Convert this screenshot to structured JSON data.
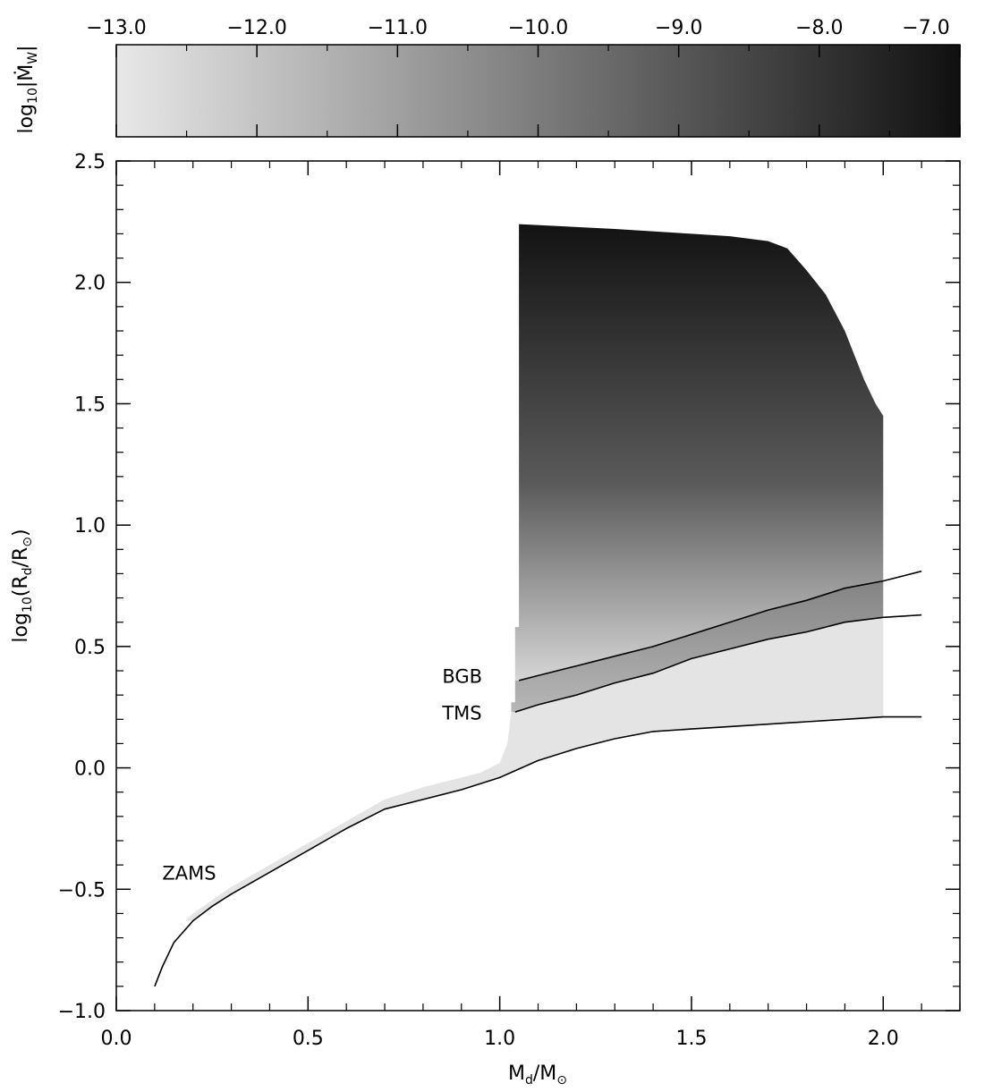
{
  "chart_data": [
    {
      "type": "heatmap",
      "role": "colorbar",
      "ticks": [
        -13.0,
        -12.0,
        -11.0,
        -10.0,
        -9.0,
        -8.0,
        -7.0
      ],
      "tick_labels": [
        "−13.0",
        "−12.0",
        "−11.0",
        "−10.0",
        "−9.0",
        "−8.0",
        "−7.0"
      ],
      "range": [
        -13.0,
        -7.0
      ],
      "colormap": {
        "low": "#e8e8e8",
        "high": "#101010"
      },
      "label": {
        "main": "log",
        "sub": "10",
        "rest": "|Ṁ",
        "sub2": "W",
        "end": "|"
      }
    },
    {
      "type": "heatmap",
      "role": "main",
      "xlim": [
        0.0,
        2.2
      ],
      "ylim": [
        -1.0,
        2.5
      ],
      "xticks": [
        0.0,
        0.5,
        1.0,
        1.5,
        2.0
      ],
      "xtick_labels": [
        "0.0",
        "0.5",
        "1.0",
        "1.5",
        "2.0"
      ],
      "yticks": [
        -1.0,
        -0.5,
        0.0,
        0.5,
        1.0,
        1.5,
        2.0,
        2.5
      ],
      "ytick_labels": [
        "−1.0",
        "−0.5",
        "0.0",
        "0.5",
        "1.0",
        "1.5",
        "2.0",
        "2.5"
      ],
      "xlabel": {
        "a": "M",
        "a_sub": "d",
        "b": "/M",
        "b_sub": "⊙"
      },
      "ylabel": {
        "a": "log",
        "a_sub": "10",
        "b": "(R",
        "b_sub": "d",
        "c": "/R",
        "c_sub": "⊙",
        "d": ")"
      },
      "curves": [
        {
          "name": "ZAMS",
          "points": [
            [
              0.1,
              -0.9
            ],
            [
              0.12,
              -0.82
            ],
            [
              0.15,
              -0.72
            ],
            [
              0.2,
              -0.63
            ],
            [
              0.25,
              -0.57
            ],
            [
              0.3,
              -0.52
            ],
            [
              0.4,
              -0.43
            ],
            [
              0.5,
              -0.34
            ],
            [
              0.6,
              -0.25
            ],
            [
              0.7,
              -0.17
            ],
            [
              0.8,
              -0.13
            ],
            [
              0.9,
              -0.09
            ],
            [
              1.0,
              -0.04
            ],
            [
              1.1,
              0.03
            ],
            [
              1.2,
              0.08
            ],
            [
              1.3,
              0.12
            ],
            [
              1.4,
              0.15
            ],
            [
              1.5,
              0.16
            ],
            [
              1.6,
              0.17
            ],
            [
              1.7,
              0.18
            ],
            [
              1.8,
              0.19
            ],
            [
              1.9,
              0.2
            ],
            [
              2.0,
              0.21
            ],
            [
              2.1,
              0.21
            ]
          ]
        },
        {
          "name": "TMS",
          "points": [
            [
              1.04,
              0.23
            ],
            [
              1.1,
              0.26
            ],
            [
              1.2,
              0.3
            ],
            [
              1.3,
              0.35
            ],
            [
              1.4,
              0.39
            ],
            [
              1.5,
              0.45
            ],
            [
              1.6,
              0.49
            ],
            [
              1.7,
              0.53
            ],
            [
              1.8,
              0.56
            ],
            [
              1.9,
              0.6
            ],
            [
              2.0,
              0.62
            ],
            [
              2.1,
              0.63
            ]
          ]
        },
        {
          "name": "BGB",
          "points": [
            [
              1.05,
              0.36
            ],
            [
              1.1,
              0.38
            ],
            [
              1.2,
              0.42
            ],
            [
              1.3,
              0.46
            ],
            [
              1.4,
              0.5
            ],
            [
              1.5,
              0.55
            ],
            [
              1.6,
              0.6
            ],
            [
              1.7,
              0.65
            ],
            [
              1.8,
              0.69
            ],
            [
              1.9,
              0.74
            ],
            [
              2.0,
              0.77
            ],
            [
              2.1,
              0.81
            ]
          ]
        }
      ],
      "labels": [
        {
          "text": "BGB",
          "x": 0.85,
          "y": 0.35
        },
        {
          "text": "TMS",
          "x": 0.85,
          "y": 0.2
        },
        {
          "text": "ZAMS",
          "x": 0.12,
          "y": -0.46
        }
      ],
      "dark_region": {
        "boundary": [
          [
            1.04,
            0.58
          ],
          [
            1.05,
            0.58
          ],
          [
            1.05,
            2.24
          ],
          [
            1.3,
            2.22
          ],
          [
            1.5,
            2.2
          ],
          [
            1.6,
            2.19
          ],
          [
            1.7,
            2.17
          ],
          [
            1.75,
            2.14
          ],
          [
            1.8,
            2.05
          ],
          [
            1.85,
            1.95
          ],
          [
            1.9,
            1.8
          ],
          [
            1.95,
            1.6
          ],
          [
            1.98,
            1.5
          ],
          [
            2.0,
            1.45
          ],
          [
            2.0,
            0.77
          ],
          [
            1.9,
            0.74
          ],
          [
            1.8,
            0.69
          ],
          [
            1.7,
            0.65
          ],
          [
            1.6,
            0.6
          ],
          [
            1.5,
            0.55
          ],
          [
            1.4,
            0.5
          ],
          [
            1.3,
            0.46
          ],
          [
            1.2,
            0.42
          ],
          [
            1.1,
            0.38
          ],
          [
            1.05,
            0.36
          ],
          [
            1.04,
            0.36
          ]
        ],
        "color_top": "#121212",
        "color_bottom": "#e0e0e0"
      },
      "mid_band": {
        "boundary": [
          [
            1.04,
            0.36
          ],
          [
            1.05,
            0.36
          ],
          [
            1.1,
            0.38
          ],
          [
            1.2,
            0.42
          ],
          [
            1.3,
            0.46
          ],
          [
            1.4,
            0.5
          ],
          [
            1.5,
            0.55
          ],
          [
            1.6,
            0.6
          ],
          [
            1.7,
            0.65
          ],
          [
            1.8,
            0.69
          ],
          [
            1.9,
            0.74
          ],
          [
            2.0,
            0.77
          ],
          [
            2.0,
            0.62
          ],
          [
            1.9,
            0.6
          ],
          [
            1.8,
            0.56
          ],
          [
            1.7,
            0.53
          ],
          [
            1.6,
            0.49
          ],
          [
            1.5,
            0.45
          ],
          [
            1.4,
            0.39
          ],
          [
            1.3,
            0.35
          ],
          [
            1.2,
            0.3
          ],
          [
            1.1,
            0.26
          ],
          [
            1.04,
            0.23
          ],
          [
            1.03,
            0.23
          ],
          [
            1.03,
            0.27
          ],
          [
            1.04,
            0.27
          ]
        ],
        "color_top": "#808080",
        "color_bottom": "#b8b8b8"
      },
      "light_region": {
        "boundary": [
          [
            0.18,
            -0.63
          ],
          [
            0.2,
            -0.6
          ],
          [
            0.3,
            -0.49
          ],
          [
            0.4,
            -0.4
          ],
          [
            0.5,
            -0.31
          ],
          [
            0.6,
            -0.22
          ],
          [
            0.7,
            -0.13
          ],
          [
            0.8,
            -0.08
          ],
          [
            0.9,
            -0.04
          ],
          [
            0.95,
            -0.02
          ],
          [
            1.0,
            0.02
          ],
          [
            1.02,
            0.1
          ],
          [
            1.03,
            0.23
          ],
          [
            1.04,
            0.23
          ],
          [
            1.1,
            0.26
          ],
          [
            1.2,
            0.3
          ],
          [
            1.3,
            0.35
          ],
          [
            1.4,
            0.39
          ],
          [
            1.5,
            0.45
          ],
          [
            1.6,
            0.49
          ],
          [
            1.7,
            0.53
          ],
          [
            1.8,
            0.56
          ],
          [
            1.9,
            0.6
          ],
          [
            2.0,
            0.62
          ],
          [
            2.0,
            0.21
          ],
          [
            1.9,
            0.2
          ],
          [
            1.8,
            0.19
          ],
          [
            1.7,
            0.18
          ],
          [
            1.6,
            0.17
          ],
          [
            1.5,
            0.16
          ],
          [
            1.4,
            0.15
          ],
          [
            1.3,
            0.12
          ],
          [
            1.2,
            0.08
          ],
          [
            1.1,
            0.03
          ],
          [
            1.0,
            -0.04
          ],
          [
            0.9,
            -0.09
          ],
          [
            0.8,
            -0.13
          ],
          [
            0.7,
            -0.17
          ],
          [
            0.6,
            -0.25
          ],
          [
            0.5,
            -0.34
          ],
          [
            0.4,
            -0.43
          ],
          [
            0.3,
            -0.52
          ],
          [
            0.25,
            -0.57
          ],
          [
            0.2,
            -0.63
          ]
        ],
        "color": "#e4e4e4"
      }
    }
  ]
}
